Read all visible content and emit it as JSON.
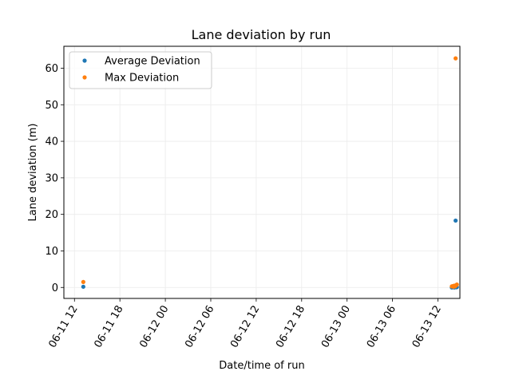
{
  "chart_data": {
    "type": "scatter",
    "title": "Lane deviation by run",
    "xlabel": "Date/time of run",
    "ylabel": "Lane deviation (m)",
    "xlim": [
      "2023-06-11 10:36",
      "2023-06-13 14:54"
    ],
    "ylim": [
      -3,
      66
    ],
    "x_ticks": [
      "06-11 12",
      "06-11 18",
      "06-12 00",
      "06-12 06",
      "06-12 12",
      "06-12 18",
      "06-13 00",
      "06-13 06",
      "06-13 12"
    ],
    "y_ticks": [
      0,
      10,
      20,
      30,
      40,
      50,
      60
    ],
    "grid": true,
    "legend_position": "top-left",
    "series": [
      {
        "name": "Average Deviation",
        "color": "#1f77b4",
        "points": [
          {
            "x": "2023-06-11 13:10",
            "y": 0.2
          },
          {
            "x": "2023-06-13 13:50",
            "y": 0.0
          },
          {
            "x": "2023-06-13 14:00",
            "y": 0.1
          },
          {
            "x": "2023-06-13 14:05",
            "y": 0.05
          },
          {
            "x": "2023-06-13 14:10",
            "y": 0.0
          },
          {
            "x": "2023-06-13 14:15",
            "y": 0.1
          },
          {
            "x": "2023-06-13 14:20",
            "y": 18.3
          },
          {
            "x": "2023-06-13 14:25",
            "y": 0.05
          },
          {
            "x": "2023-06-13 14:30",
            "y": 0.1
          }
        ]
      },
      {
        "name": "Max Deviation",
        "color": "#ff7f0e",
        "points": [
          {
            "x": "2023-06-11 13:10",
            "y": 1.5
          },
          {
            "x": "2023-06-13 13:50",
            "y": 0.3
          },
          {
            "x": "2023-06-13 14:00",
            "y": 0.4
          },
          {
            "x": "2023-06-13 14:05",
            "y": 0.2
          },
          {
            "x": "2023-06-13 14:10",
            "y": 0.5
          },
          {
            "x": "2023-06-13 14:15",
            "y": 0.3
          },
          {
            "x": "2023-06-13 14:20",
            "y": 62.7
          },
          {
            "x": "2023-06-13 14:25",
            "y": 0.6
          },
          {
            "x": "2023-06-13 14:30",
            "y": 0.8
          }
        ]
      }
    ]
  }
}
